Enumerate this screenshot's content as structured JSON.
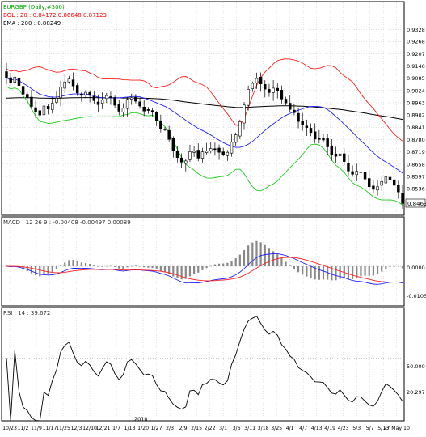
{
  "chart_data": [
    {
      "type": "candlestick",
      "panel": "price",
      "legend": [
        {
          "text": "EURGBP (Daily,#300)",
          "color": "#00aa00"
        },
        {
          "text": "BOL : 20 : 0.84172 0.86648 0.87123",
          "color": "#ff0000"
        },
        {
          "text": "EMA : 200 : 0.88249",
          "color": "#000000"
        }
      ],
      "ylim": [
        0.842,
        0.945
      ],
      "y_ticks": [
        "0.9328",
        "0.9268",
        "0.9207",
        "0.9146",
        "0.9085",
        "0.9024",
        "0.8963",
        "0.8902",
        "0.8841",
        "0.8780",
        "0.8719",
        "0.8658",
        "0.8597",
        "0.8536"
      ],
      "last_price": "0.8463",
      "close": [
        0.9088,
        0.9064,
        0.9091,
        0.9049,
        0.9006,
        0.8991,
        0.8945,
        0.8918,
        0.8902,
        0.8947,
        0.8932,
        0.8961,
        0.8986,
        0.9042,
        0.9067,
        0.9081,
        0.9047,
        0.9012,
        0.9,
        0.9015,
        0.9,
        0.8974,
        0.8954,
        0.8977,
        0.8999,
        0.899,
        0.8951,
        0.8921,
        0.8936,
        0.898,
        0.8988,
        0.8971,
        0.8947,
        0.8922,
        0.8925,
        0.8918,
        0.8873,
        0.8835,
        0.8831,
        0.8781,
        0.8725,
        0.8691,
        0.8668,
        0.8674,
        0.872,
        0.8722,
        0.8688,
        0.8719,
        0.8723,
        0.8736,
        0.8734,
        0.8717,
        0.8706,
        0.8717,
        0.8767,
        0.8804,
        0.8869,
        0.8952,
        0.903,
        0.906,
        0.9084,
        0.9057,
        0.9031,
        0.9014,
        0.9036,
        0.9021,
        0.8982,
        0.8962,
        0.893,
        0.8914,
        0.887,
        0.8853,
        0.884,
        0.8815,
        0.8783,
        0.8781,
        0.8778,
        0.8744,
        0.8705,
        0.8697,
        0.8709,
        0.8671,
        0.8624,
        0.8608,
        0.8623,
        0.862,
        0.8584,
        0.8546,
        0.8533,
        0.8546,
        0.8572,
        0.8595,
        0.8579,
        0.8553,
        0.852,
        0.8463
      ],
      "bollinger": {
        "period": 20
      },
      "ema": {
        "period": 200
      }
    },
    {
      "type": "histogram-line",
      "panel": "macd",
      "legend": "MACD : 12 26 9 : -0.00408 -0.00497 0.00089",
      "y_ticks": [
        "0.0000",
        "-0.01030"
      ]
    },
    {
      "type": "line",
      "panel": "rsi",
      "legend": "RSI : 14 : 39.672",
      "y_ticks": [
        "50.000",
        "20.297"
      ],
      "year_label": "2010",
      "x_ticks": [
        "10/23",
        "11/2",
        "11/9",
        "11/17",
        "11/25",
        "12/3",
        "12/10",
        "12/21",
        "1/7",
        "1/13",
        "1/20",
        "1/27",
        "2/3",
        "2/9",
        "2/15",
        "2/22",
        "3/1",
        "3/6",
        "3/11",
        "3/18",
        "3/25",
        "4/1",
        "4/7",
        "4/13",
        "4/19",
        "4/23",
        "5/3",
        "5/7",
        "5/13",
        "27 May 10"
      ]
    }
  ]
}
